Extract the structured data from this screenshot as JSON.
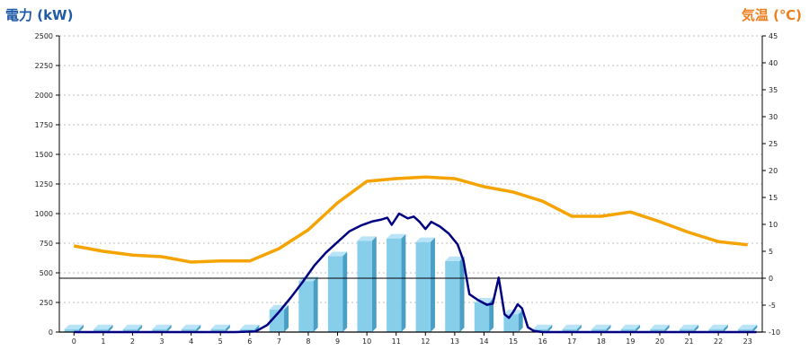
{
  "chart_data": {
    "type": "bar+line",
    "left_axis": {
      "label": "電力 (kW)",
      "range": [
        0,
        2500
      ],
      "ticks": [
        0,
        250,
        500,
        750,
        1000,
        1250,
        1500,
        1750,
        2000,
        2250,
        2500
      ]
    },
    "right_axis": {
      "label": "気温 (℃)",
      "range": [
        -10,
        45
      ],
      "ticks": [
        -10,
        -5,
        0,
        5,
        10,
        15,
        20,
        25,
        30,
        35,
        40,
        45
      ]
    },
    "categories": [
      "0",
      "1",
      "2",
      "3",
      "4",
      "5",
      "6",
      "7",
      "8",
      "9",
      "10",
      "11",
      "12",
      "13",
      "14",
      "15",
      "16",
      "17",
      "18",
      "19",
      "20",
      "21",
      "22",
      "23"
    ],
    "grid": "horizontal dashed",
    "bars": {
      "axis": "left",
      "color": "#87ceeb",
      "values": [
        25,
        25,
        25,
        25,
        25,
        25,
        25,
        190,
        430,
        640,
        770,
        790,
        760,
        600,
        250,
        150,
        25,
        25,
        25,
        25,
        25,
        25,
        25,
        25
      ]
    },
    "temperature_line": {
      "axis": "right",
      "color": "#f5a300",
      "x": [
        0,
        1,
        2,
        3,
        4,
        5,
        6,
        7,
        8,
        9,
        10,
        11,
        12,
        13,
        14,
        15,
        16,
        17,
        18,
        19,
        20,
        21,
        22,
        23
      ],
      "values": [
        6,
        5,
        4.3,
        4,
        3,
        3.2,
        3.2,
        5.5,
        9,
        14,
        18,
        18.5,
        18.8,
        18.5,
        17,
        16,
        14.3,
        11.5,
        11.5,
        12.3,
        10.5,
        8.5,
        6.8,
        6.2
      ]
    },
    "power_line": {
      "axis": "left",
      "color": "#000080",
      "x": [
        0,
        5.5,
        6.2,
        6.6,
        7,
        7.4,
        7.8,
        8.2,
        8.6,
        9,
        9.4,
        9.8,
        10.2,
        10.5,
        10.7,
        10.85,
        11.1,
        11.4,
        11.6,
        11.8,
        12.0,
        12.2,
        12.5,
        12.8,
        13.1,
        13.3,
        13.5,
        13.8,
        14.1,
        14.3,
        14.5,
        14.7,
        14.85,
        15.0,
        15.15,
        15.3,
        15.5,
        15.7,
        16.0,
        23.3
      ],
      "values": [
        0,
        0,
        5,
        60,
        170,
        290,
        420,
        560,
        670,
        760,
        850,
        900,
        935,
        950,
        965,
        905,
        1000,
        960,
        975,
        930,
        870,
        930,
        890,
        830,
        740,
        600,
        320,
        270,
        230,
        240,
        460,
        150,
        120,
        170,
        235,
        200,
        40,
        10,
        0,
        0
      ]
    },
    "reference_line": {
      "axis": "right",
      "value": 0
    }
  }
}
